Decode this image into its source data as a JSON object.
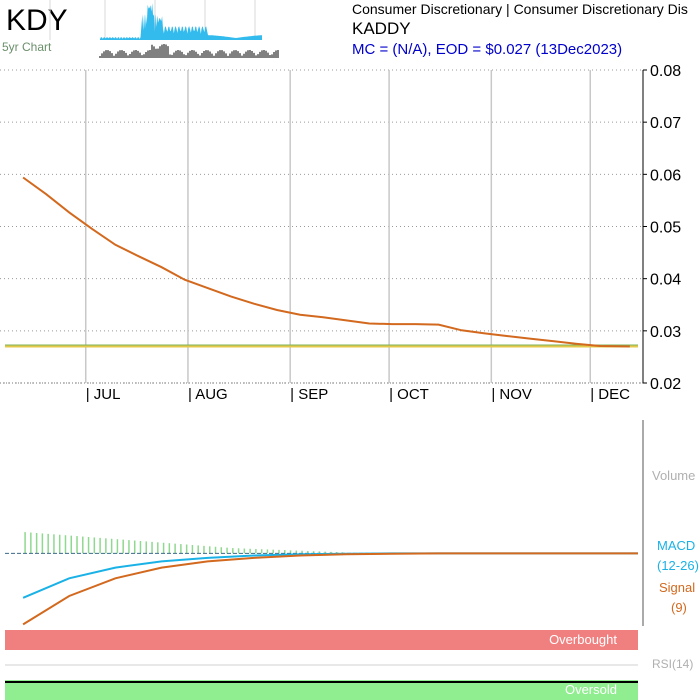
{
  "header": {
    "ticker": "KDY",
    "mini_chart_label": "5yr Chart",
    "sector": "Consumer Discretionary | Consumer Discretionary Dis",
    "company": "KADDY",
    "quote": "MC = (N/A), EOD = $0.027 (13Dec2023)"
  },
  "panels": {
    "volume_label": "Volume",
    "macd_label": "MACD",
    "macd_params": "(12-26)",
    "signal_label": "Signal",
    "signal_params": "(9)",
    "overbought_label": "Overbought",
    "rsi_label": "RSI(14)",
    "oversold_label": "Oversold"
  },
  "colors": {
    "ticker_text": "#000000",
    "quote_text": "#0000cc",
    "grid": "#c8c8c8",
    "price_line": "#d2691e",
    "ema_line": "#e4c84a",
    "ema_line2": "#7fb35a",
    "macd_line": "#1ab2e6",
    "signal_line": "#d2691e",
    "histogram": "#8fd88f",
    "overbought_band": "#f08080",
    "oversold_band": "#90ee90",
    "mini_area": "#33bbee",
    "volume_text": "#b0b0b0"
  },
  "chart_data": [
    {
      "type": "line",
      "title": "",
      "x_ticks": [
        "| JUL",
        "| AUG",
        "| SEP",
        "| OCT",
        "| NOV",
        "| DEC"
      ],
      "y_ticks": [
        "0.08",
        "0.07",
        "0.06",
        "0.05",
        "0.04",
        "0.03",
        "0.02"
      ],
      "ylim": [
        0.02,
        0.08
      ],
      "grid": true,
      "series": [
        {
          "x": [
            "2023-06-12",
            "2023-06-19",
            "2023-06-26",
            "2023-07-03",
            "2023-07-10",
            "2023-07-17",
            "2023-07-24",
            "2023-07-31",
            "2023-08-07",
            "2023-08-14",
            "2023-08-21",
            "2023-08-28",
            "2023-09-04",
            "2023-09-11",
            "2023-09-18",
            "2023-09-25",
            "2023-10-02",
            "2023-10-09",
            "2023-10-16",
            "2023-10-23",
            "2023-10-30",
            "2023-11-06",
            "2023-11-13",
            "2023-11-20",
            "2023-11-27",
            "2023-12-04",
            "2023-12-13"
          ],
          "y": [
            0.0594,
            0.0562,
            0.0527,
            0.0495,
            0.0465,
            0.0443,
            0.0422,
            0.0398,
            0.0382,
            0.0366,
            0.0352,
            0.034,
            0.0331,
            0.0326,
            0.032,
            0.0314,
            0.0313,
            0.0313,
            0.0312,
            0.0301,
            0.0295,
            0.029,
            0.0285,
            0.028,
            0.0275,
            0.0271,
            0.027
          ]
        },
        {
          "x": [
            "2023-06-12",
            "2023-12-13"
          ],
          "y": [
            0.027,
            0.027
          ]
        }
      ]
    },
    {
      "type": "line",
      "title": "",
      "series": [
        {
          "name": "MACD",
          "x": [
            "2023-06-12",
            "2023-06-26",
            "2023-07-10",
            "2023-07-24",
            "2023-08-07",
            "2023-08-21",
            "2023-09-04",
            "2023-09-18",
            "2023-10-02",
            "2023-10-16",
            "2023-10-30",
            "2023-11-13",
            "2023-11-27",
            "2023-12-13"
          ],
          "y": [
            -0.0025,
            -0.0014,
            -0.0008,
            -0.00045,
            -0.00025,
            -0.00012,
            -5e-05,
            -2e-05,
            0,
            0,
            0,
            0,
            0,
            0
          ]
        },
        {
          "name": "Signal",
          "x": [
            "2023-06-12",
            "2023-06-26",
            "2023-07-10",
            "2023-07-24",
            "2023-08-07",
            "2023-08-21",
            "2023-09-04",
            "2023-09-18",
            "2023-10-02",
            "2023-10-16",
            "2023-10-30",
            "2023-11-13",
            "2023-11-27",
            "2023-12-13"
          ],
          "y": [
            -0.004,
            -0.0024,
            -0.0014,
            -0.0008,
            -0.00045,
            -0.00025,
            -0.00012,
            -5e-05,
            -2e-05,
            0,
            0,
            0,
            0,
            0
          ]
        }
      ],
      "histogram": {
        "x": [
          "2023-06-12",
          "2023-06-19",
          "2023-06-26",
          "2023-07-03",
          "2023-07-10",
          "2023-07-17",
          "2023-07-24",
          "2023-07-31",
          "2023-08-07",
          "2023-08-14",
          "2023-08-21",
          "2023-08-28",
          "2023-09-04",
          "2023-09-11",
          "2023-09-18"
        ],
        "y": [
          0.0012,
          0.0011,
          0.001,
          0.0009,
          0.0008,
          0.0007,
          0.0006,
          0.0005,
          0.0004,
          0.0003,
          0.00025,
          0.0002,
          0.00015,
          0.0001,
          5e-05
        ]
      }
    }
  ]
}
